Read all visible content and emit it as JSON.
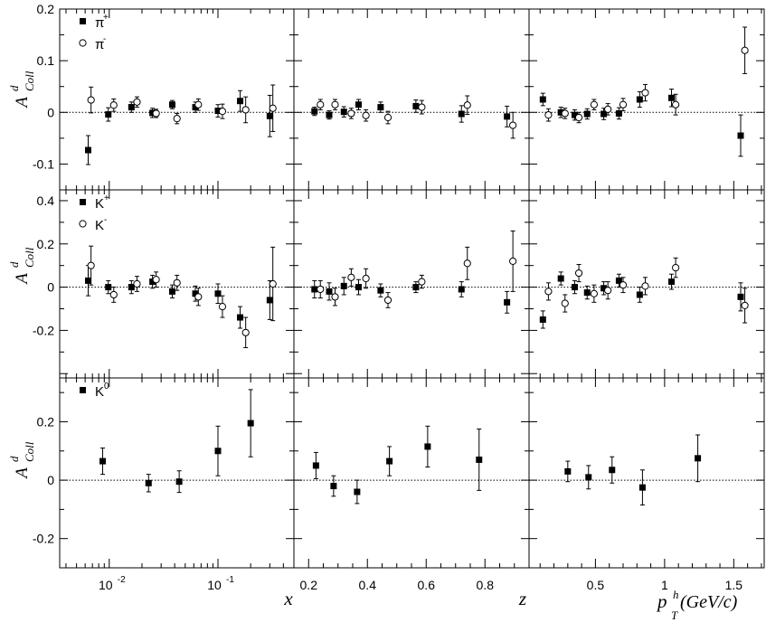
{
  "figure": {
    "column_labels": {
      "x": "x",
      "z": "z",
      "pt_main": "p",
      "pt_sup": "h",
      "pt_sub": "T",
      "pt_unit": " (GeV/c)"
    },
    "ylabel_main": "A",
    "ylabel_sup": "d",
    "ylabel_sub": "Coll"
  },
  "chart_data": [
    {
      "row": 0,
      "col": 0,
      "type": "scatter",
      "xscale": "log",
      "xlim": [
        0.0035,
        0.5
      ],
      "ylim": [
        -0.15,
        0.2
      ],
      "yticks": [
        -0.1,
        0,
        0.1,
        0.2
      ],
      "ytick_labels": [
        "-0.1",
        "0",
        "0.1",
        "0.2"
      ],
      "xticks": [
        0.01,
        0.1
      ],
      "xtick_labels": [
        "10",
        "10"
      ],
      "xtick_sup": [
        "-2",
        "-1"
      ],
      "legend": [
        {
          "symbol": "filled-square",
          "label": "π",
          "sup": "+"
        },
        {
          "symbol": "open-circle",
          "label": "π",
          "sup": "-"
        }
      ],
      "series": [
        {
          "name": "π+",
          "marker": "filled",
          "points": [
            {
              "x": 0.0064,
              "y": -0.073,
              "err": 0.028
            },
            {
              "x": 0.0098,
              "y": -0.004,
              "err": 0.013
            },
            {
              "x": 0.016,
              "y": 0.01,
              "err": 0.01
            },
            {
              "x": 0.025,
              "y": -0.001,
              "err": 0.009
            },
            {
              "x": 0.038,
              "y": 0.015,
              "err": 0.008
            },
            {
              "x": 0.062,
              "y": 0.01,
              "err": 0.01
            },
            {
              "x": 0.1,
              "y": 0.003,
              "err": 0.012
            },
            {
              "x": 0.16,
              "y": 0.022,
              "err": 0.02
            },
            {
              "x": 0.3,
              "y": -0.007,
              "err": 0.04
            }
          ]
        },
        {
          "name": "π-",
          "marker": "open",
          "points": [
            {
              "x": 0.0068,
              "y": 0.024,
              "err": 0.025
            },
            {
              "x": 0.011,
              "y": 0.014,
              "err": 0.012
            },
            {
              "x": 0.018,
              "y": 0.02,
              "err": 0.01
            },
            {
              "x": 0.027,
              "y": -0.002,
              "err": 0.008
            },
            {
              "x": 0.042,
              "y": -0.012,
              "err": 0.01
            },
            {
              "x": 0.066,
              "y": 0.015,
              "err": 0.011
            },
            {
              "x": 0.11,
              "y": 0.002,
              "err": 0.014
            },
            {
              "x": 0.18,
              "y": 0.005,
              "err": 0.025
            },
            {
              "x": 0.32,
              "y": 0.008,
              "err": 0.045
            }
          ]
        }
      ]
    },
    {
      "row": 0,
      "col": 1,
      "type": "scatter",
      "xscale": "linear",
      "xlim": [
        0.15,
        0.95
      ],
      "ylim": [
        -0.15,
        0.2
      ],
      "xticks": [
        0.2,
        0.4,
        0.6,
        0.8
      ],
      "xtick_labels": [
        "0.2",
        "0.4",
        "0.6",
        "0.8"
      ],
      "series": [
        {
          "name": "π+",
          "marker": "filled",
          "points": [
            {
              "x": 0.22,
              "y": 0.002,
              "err": 0.008
            },
            {
              "x": 0.27,
              "y": -0.005,
              "err": 0.008
            },
            {
              "x": 0.32,
              "y": 0.001,
              "err": 0.01
            },
            {
              "x": 0.37,
              "y": 0.015,
              "err": 0.01
            },
            {
              "x": 0.445,
              "y": 0.01,
              "err": 0.01
            },
            {
              "x": 0.565,
              "y": 0.012,
              "err": 0.012
            },
            {
              "x": 0.72,
              "y": -0.003,
              "err": 0.016
            },
            {
              "x": 0.875,
              "y": -0.008,
              "err": 0.02
            }
          ]
        },
        {
          "name": "π-",
          "marker": "open",
          "points": [
            {
              "x": 0.24,
              "y": 0.015,
              "err": 0.01
            },
            {
              "x": 0.29,
              "y": 0.015,
              "err": 0.01
            },
            {
              "x": 0.345,
              "y": -0.002,
              "err": 0.01
            },
            {
              "x": 0.395,
              "y": -0.006,
              "err": 0.011
            },
            {
              "x": 0.47,
              "y": -0.01,
              "err": 0.012
            },
            {
              "x": 0.585,
              "y": 0.01,
              "err": 0.013
            },
            {
              "x": 0.74,
              "y": 0.014,
              "err": 0.018
            },
            {
              "x": 0.895,
              "y": -0.025,
              "err": 0.025
            }
          ]
        }
      ]
    },
    {
      "row": 0,
      "col": 2,
      "type": "scatter",
      "xscale": "linear",
      "xlim": [
        0.02,
        1.72
      ],
      "ylim": [
        -0.15,
        0.2
      ],
      "xticks": [
        0.5,
        1,
        1.5
      ],
      "xtick_labels": [
        "0.5",
        "1",
        "1.5"
      ],
      "series": [
        {
          "name": "π+",
          "marker": "filled",
          "points": [
            {
              "x": 0.12,
              "y": 0.025,
              "err": 0.012
            },
            {
              "x": 0.25,
              "y": 0.0,
              "err": 0.01
            },
            {
              "x": 0.35,
              "y": -0.005,
              "err": 0.01
            },
            {
              "x": 0.44,
              "y": -0.003,
              "err": 0.01
            },
            {
              "x": 0.56,
              "y": -0.003,
              "err": 0.011
            },
            {
              "x": 0.67,
              "y": -0.002,
              "err": 0.011
            },
            {
              "x": 0.82,
              "y": 0.025,
              "err": 0.015
            },
            {
              "x": 1.05,
              "y": 0.028,
              "err": 0.017
            },
            {
              "x": 1.55,
              "y": -0.045,
              "err": 0.04
            }
          ]
        },
        {
          "name": "π-",
          "marker": "open",
          "points": [
            {
              "x": 0.16,
              "y": -0.005,
              "err": 0.012
            },
            {
              "x": 0.28,
              "y": -0.002,
              "err": 0.01
            },
            {
              "x": 0.38,
              "y": -0.01,
              "err": 0.01
            },
            {
              "x": 0.49,
              "y": 0.015,
              "err": 0.01
            },
            {
              "x": 0.59,
              "y": 0.006,
              "err": 0.011
            },
            {
              "x": 0.7,
              "y": 0.015,
              "err": 0.012
            },
            {
              "x": 0.86,
              "y": 0.038,
              "err": 0.016
            },
            {
              "x": 1.08,
              "y": 0.015,
              "err": 0.02
            },
            {
              "x": 1.58,
              "y": 0.12,
              "err": 0.045
            }
          ]
        }
      ]
    },
    {
      "row": 1,
      "col": 0,
      "type": "scatter",
      "xscale": "log",
      "xlim": [
        0.0035,
        0.5
      ],
      "ylim": [
        -0.42,
        0.45
      ],
      "yticks": [
        -0.2,
        0,
        0.2,
        0.4
      ],
      "ytick_labels": [
        "-0.2",
        "0",
        "0.2",
        "0.4"
      ],
      "legend": [
        {
          "symbol": "filled-square",
          "label": "K",
          "sup": "+"
        },
        {
          "symbol": "open-circle",
          "label": "K",
          "sup": "-"
        }
      ],
      "series": [
        {
          "name": "K+",
          "marker": "filled",
          "points": [
            {
              "x": 0.0064,
              "y": 0.03,
              "err": 0.07
            },
            {
              "x": 0.0098,
              "y": 0.0,
              "err": 0.03
            },
            {
              "x": 0.016,
              "y": 0.0,
              "err": 0.03
            },
            {
              "x": 0.025,
              "y": 0.025,
              "err": 0.03
            },
            {
              "x": 0.038,
              "y": -0.02,
              "err": 0.03
            },
            {
              "x": 0.062,
              "y": -0.03,
              "err": 0.035
            },
            {
              "x": 0.1,
              "y": -0.03,
              "err": 0.045
            },
            {
              "x": 0.16,
              "y": -0.14,
              "err": 0.05
            },
            {
              "x": 0.3,
              "y": -0.06,
              "err": 0.09
            }
          ]
        },
        {
          "name": "K-",
          "marker": "open",
          "points": [
            {
              "x": 0.0068,
              "y": 0.1,
              "err": 0.09
            },
            {
              "x": 0.011,
              "y": -0.035,
              "err": 0.035
            },
            {
              "x": 0.018,
              "y": 0.015,
              "err": 0.035
            },
            {
              "x": 0.027,
              "y": 0.035,
              "err": 0.035
            },
            {
              "x": 0.042,
              "y": 0.02,
              "err": 0.035
            },
            {
              "x": 0.066,
              "y": -0.045,
              "err": 0.04
            },
            {
              "x": 0.11,
              "y": -0.09,
              "err": 0.05
            },
            {
              "x": 0.18,
              "y": -0.21,
              "err": 0.07
            },
            {
              "x": 0.32,
              "y": 0.015,
              "err": 0.17
            }
          ]
        }
      ]
    },
    {
      "row": 1,
      "col": 1,
      "type": "scatter",
      "xscale": "linear",
      "xlim": [
        0.15,
        0.95
      ],
      "ylim": [
        -0.42,
        0.45
      ],
      "series": [
        {
          "name": "K+",
          "marker": "filled",
          "points": [
            {
              "x": 0.22,
              "y": -0.01,
              "err": 0.04
            },
            {
              "x": 0.27,
              "y": -0.02,
              "err": 0.04
            },
            {
              "x": 0.32,
              "y": 0.005,
              "err": 0.04
            },
            {
              "x": 0.37,
              "y": 0.0,
              "err": 0.035
            },
            {
              "x": 0.445,
              "y": -0.015,
              "err": 0.03
            },
            {
              "x": 0.565,
              "y": 0.0,
              "err": 0.025
            },
            {
              "x": 0.72,
              "y": -0.01,
              "err": 0.035
            },
            {
              "x": 0.875,
              "y": -0.07,
              "err": 0.05
            }
          ]
        },
        {
          "name": "K-",
          "marker": "open",
          "points": [
            {
              "x": 0.24,
              "y": -0.01,
              "err": 0.04
            },
            {
              "x": 0.29,
              "y": -0.045,
              "err": 0.04
            },
            {
              "x": 0.345,
              "y": 0.045,
              "err": 0.04
            },
            {
              "x": 0.395,
              "y": 0.04,
              "err": 0.045
            },
            {
              "x": 0.47,
              "y": -0.06,
              "err": 0.035
            },
            {
              "x": 0.585,
              "y": 0.025,
              "err": 0.03
            },
            {
              "x": 0.74,
              "y": 0.11,
              "err": 0.075
            },
            {
              "x": 0.895,
              "y": 0.12,
              "err": 0.14
            }
          ]
        }
      ]
    },
    {
      "row": 1,
      "col": 2,
      "type": "scatter",
      "xscale": "linear",
      "xlim": [
        0.02,
        1.72
      ],
      "ylim": [
        -0.42,
        0.45
      ],
      "series": [
        {
          "name": "K+",
          "marker": "filled",
          "points": [
            {
              "x": 0.12,
              "y": -0.15,
              "err": 0.04
            },
            {
              "x": 0.25,
              "y": 0.04,
              "err": 0.03
            },
            {
              "x": 0.35,
              "y": 0.0,
              "err": 0.03
            },
            {
              "x": 0.44,
              "y": -0.025,
              "err": 0.03
            },
            {
              "x": 0.56,
              "y": -0.005,
              "err": 0.03
            },
            {
              "x": 0.67,
              "y": 0.03,
              "err": 0.03
            },
            {
              "x": 0.82,
              "y": -0.035,
              "err": 0.035
            },
            {
              "x": 1.05,
              "y": 0.025,
              "err": 0.035
            },
            {
              "x": 1.55,
              "y": -0.045,
              "err": 0.065
            }
          ]
        },
        {
          "name": "K-",
          "marker": "open",
          "points": [
            {
              "x": 0.16,
              "y": -0.02,
              "err": 0.04
            },
            {
              "x": 0.28,
              "y": -0.075,
              "err": 0.04
            },
            {
              "x": 0.38,
              "y": 0.065,
              "err": 0.04
            },
            {
              "x": 0.49,
              "y": -0.03,
              "err": 0.04
            },
            {
              "x": 0.59,
              "y": -0.015,
              "err": 0.04
            },
            {
              "x": 0.7,
              "y": 0.01,
              "err": 0.035
            },
            {
              "x": 0.86,
              "y": 0.005,
              "err": 0.04
            },
            {
              "x": 1.08,
              "y": 0.09,
              "err": 0.045
            },
            {
              "x": 1.58,
              "y": -0.085,
              "err": 0.08
            }
          ]
        }
      ]
    },
    {
      "row": 2,
      "col": 0,
      "type": "scatter",
      "xscale": "log",
      "xlim": [
        0.0035,
        0.5
      ],
      "ylim": [
        -0.3,
        0.35
      ],
      "yticks": [
        -0.2,
        0,
        0.2
      ],
      "ytick_labels": [
        "-0.2",
        "0",
        "0.2"
      ],
      "legend": [
        {
          "symbol": "filled-square",
          "label": "K",
          "sup": "0"
        }
      ],
      "series": [
        {
          "name": "K0",
          "marker": "filled",
          "points": [
            {
              "x": 0.0087,
              "y": 0.065,
              "err": 0.045
            },
            {
              "x": 0.023,
              "y": -0.01,
              "err": 0.03
            },
            {
              "x": 0.044,
              "y": -0.005,
              "err": 0.037
            },
            {
              "x": 0.1,
              "y": 0.1,
              "err": 0.085
            },
            {
              "x": 0.2,
              "y": 0.195,
              "err": 0.115
            }
          ]
        }
      ]
    },
    {
      "row": 2,
      "col": 1,
      "type": "scatter",
      "xscale": "linear",
      "xlim": [
        0.15,
        0.95
      ],
      "ylim": [
        -0.3,
        0.35
      ],
      "series": [
        {
          "name": "K0",
          "marker": "filled",
          "points": [
            {
              "x": 0.225,
              "y": 0.05,
              "err": 0.045
            },
            {
              "x": 0.285,
              "y": -0.02,
              "err": 0.035
            },
            {
              "x": 0.365,
              "y": -0.04,
              "err": 0.04
            },
            {
              "x": 0.475,
              "y": 0.065,
              "err": 0.05
            },
            {
              "x": 0.605,
              "y": 0.115,
              "err": 0.07
            },
            {
              "x": 0.78,
              "y": 0.07,
              "err": 0.105
            }
          ]
        }
      ]
    },
    {
      "row": 2,
      "col": 2,
      "type": "scatter",
      "xscale": "linear",
      "xlim": [
        0.02,
        1.72
      ],
      "ylim": [
        -0.3,
        0.35
      ],
      "series": [
        {
          "name": "K0",
          "marker": "filled",
          "points": [
            {
              "x": 0.3,
              "y": 0.03,
              "err": 0.035
            },
            {
              "x": 0.45,
              "y": 0.01,
              "err": 0.04
            },
            {
              "x": 0.62,
              "y": 0.035,
              "err": 0.045
            },
            {
              "x": 0.84,
              "y": -0.025,
              "err": 0.06
            },
            {
              "x": 1.24,
              "y": 0.075,
              "err": 0.08
            }
          ]
        }
      ]
    }
  ]
}
